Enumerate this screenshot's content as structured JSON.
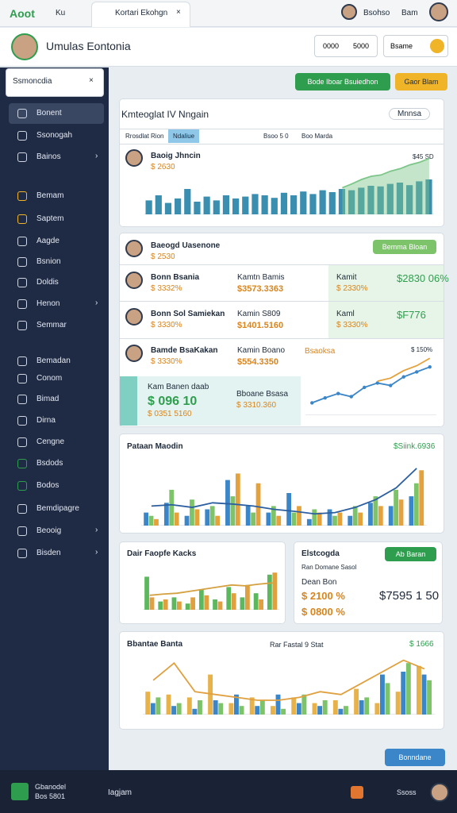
{
  "topbar": {
    "logo": "Aoot",
    "tab": "Ku",
    "active_tab": "Kortari Ekohgn",
    "user": "Bsohso",
    "user2": "Bam"
  },
  "header": {
    "title": "Umulas Eontonia",
    "btn1": "0000",
    "btn2": "5000",
    "btn3": "Bsame"
  },
  "search": {
    "placeholder": "Ssmoncdia"
  },
  "sidebar": {
    "items": [
      "Bonent",
      "Ssonogah",
      "Bainos",
      "Bemam",
      "Saptem",
      "Aagde",
      "Bsnion",
      "Doldis",
      "Henon",
      "Semmar",
      "Bemadan",
      "Conom",
      "Bimad",
      "Dirna",
      "Cengne",
      "Bsdods",
      "Bodos",
      "Bemdipagre",
      "Beooig",
      "Bisden"
    ]
  },
  "actions": {
    "primary": "Bode Iboar Bsuiedhon",
    "secondary": "Gaor Blam"
  },
  "panel1": {
    "title": "Kmteoglat IV Nngain",
    "menu": "Mnnsa",
    "tabs": [
      "Rrosdlat Rion",
      "Ndaliue",
      "Bsoo 5 0",
      "Boo Marda"
    ],
    "person": "Baoig Jhncin",
    "person_value": "$ 2630",
    "peak_label": "$45 SD",
    "chart": {
      "ylim": [
        0,
        100
      ],
      "series": [
        {
          "color": "#3a8fb0",
          "values": [
            22,
            30,
            18,
            25,
            40,
            20,
            28,
            22,
            30,
            25,
            28,
            32,
            30,
            26,
            34,
            30,
            36,
            32,
            38,
            35,
            40,
            38,
            42,
            45,
            44,
            48,
            50,
            46,
            52,
            55
          ]
        }
      ],
      "lines": [
        {
          "color": "#7cc68a",
          "area": true,
          "dots": false,
          "values": [
            null,
            null,
            null,
            null,
            null,
            null,
            null,
            null,
            null,
            null,
            null,
            null,
            null,
            null,
            null,
            null,
            null,
            null,
            null,
            null,
            42,
            48,
            55,
            60,
            62,
            68,
            72,
            78,
            82,
            88
          ]
        }
      ]
    }
  },
  "panel2": {
    "head": {
      "name": "Baeogd Uasenone",
      "sub": "$ 2530",
      "button": "Bemma Bloan"
    },
    "rows": [
      {
        "name": "Bonn Bsania",
        "sub": "$ 3332%",
        "mid_label": "Kamtn Bamis",
        "mid_value": "$3573.3363",
        "right_label": "Kamit",
        "right_sub": "$ 2330%",
        "right_value": "$2830 06%"
      },
      {
        "name": "Bonn Sol Samiekan",
        "sub": "$ 3330%",
        "mid_label": "Kamin S809",
        "mid_value": "$1401.5160",
        "right_label": "Kaml",
        "right_sub": "$ 3330%",
        "right_value": "$F776"
      },
      {
        "name": "Bamde BsaKakan",
        "sub": "$ 3330%",
        "mid_label": "Kamin Boano",
        "mid_value": "$554.3350"
      }
    ],
    "summary": {
      "label": "Kam Banen daab",
      "value": "$ 096 10",
      "sub": "$ 0351 5160",
      "mid_label": "Bboane Bsasa",
      "mid_value": "$ 3310.360"
    },
    "line_label": "Bsaoksa",
    "line_value": "$ 150%",
    "chart": {
      "ylim": [
        0,
        100
      ],
      "lines": [
        {
          "color": "#3a86c8",
          "area": false,
          "dots": true,
          "values": [
            20,
            28,
            35,
            30,
            45,
            52,
            48,
            62,
            70,
            78
          ]
        },
        {
          "color": "#e4a23c",
          "area": false,
          "dots": false,
          "values": [
            null,
            null,
            null,
            null,
            null,
            55,
            60,
            72,
            80,
            92
          ]
        }
      ]
    }
  },
  "panel3": {
    "title": "Pataan Maodin",
    "value": "$Siink.6936",
    "chart": {
      "ylim": [
        0,
        100
      ],
      "series": [
        {
          "color": "#3a86c8",
          "values": [
            20,
            35,
            15,
            25,
            70,
            30,
            20,
            50,
            10,
            25,
            15,
            35,
            30,
            45
          ]
        },
        {
          "color": "#7cc36a",
          "values": [
            15,
            55,
            40,
            30,
            45,
            20,
            30,
            20,
            25,
            15,
            30,
            45,
            55,
            65
          ]
        },
        {
          "color": "#e4a23c",
          "values": [
            10,
            20,
            25,
            15,
            80,
            65,
            15,
            30,
            20,
            20,
            20,
            30,
            40,
            85
          ]
        }
      ],
      "lines": [
        {
          "color": "#2c5fa0",
          "area": false,
          "dots": false,
          "values": [
            30,
            32,
            28,
            35,
            33,
            30,
            25,
            22,
            18,
            20,
            28,
            40,
            58,
            88
          ]
        }
      ]
    }
  },
  "panel4": {
    "title": "Dair Faopfe Kacks",
    "chart": {
      "ylim": [
        0,
        100
      ],
      "series": [
        {
          "color": "#5cb85c",
          "values": [
            80,
            20,
            30,
            15,
            50,
            25,
            55,
            30,
            40,
            85
          ]
        },
        {
          "color": "#e0a040",
          "values": [
            30,
            25,
            20,
            30,
            35,
            20,
            40,
            60,
            25,
            90
          ]
        }
      ],
      "lines": [
        {
          "color": "#d4a040",
          "area": false,
          "dots": false,
          "values": [
            35,
            38,
            40,
            45,
            50,
            55,
            60,
            58,
            62,
            65
          ]
        }
      ]
    }
  },
  "panel5": {
    "title": "Elstcogda",
    "button": "Ab Baran",
    "sub": "Ran Domane Sasol",
    "label": "Dean Bon",
    "value1": "$ 2100 %",
    "value2": "$ 0800 %",
    "big": "$7595 1 50"
  },
  "panel6": {
    "title": "Bbantae Banta",
    "legend": "Rar Fastal 9 Stat",
    "value": "$ 1666",
    "chart": {
      "ylim": [
        0,
        100
      ],
      "series": [
        {
          "color": "#e8b24a",
          "values": [
            40,
            35,
            30,
            70,
            20,
            30,
            15,
            30,
            20,
            25,
            45,
            20,
            40,
            85
          ]
        },
        {
          "color": "#3a86c8",
          "values": [
            20,
            15,
            10,
            25,
            35,
            15,
            35,
            20,
            15,
            10,
            25,
            70,
            75,
            70
          ]
        },
        {
          "color": "#7cc36a",
          "values": [
            30,
            20,
            25,
            20,
            15,
            25,
            10,
            35,
            25,
            15,
            30,
            55,
            90,
            60
          ]
        }
      ],
      "lines": [
        {
          "color": "#e0a040",
          "area": false,
          "dots": false,
          "values": [
            60,
            90,
            40,
            35,
            30,
            25,
            25,
            30,
            40,
            35,
            55,
            75,
            95,
            80
          ]
        }
      ]
    }
  },
  "cta": "Bonndane",
  "bottombar": {
    "brand": "Gbanodel",
    "brand_sub": "Bos 5801",
    "search": "Iagjam",
    "user": "Ssoss"
  }
}
